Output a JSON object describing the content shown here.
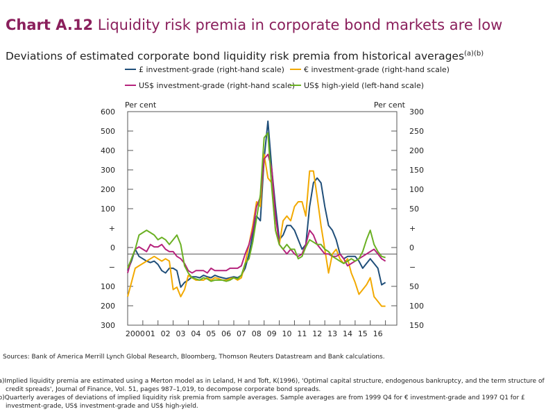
{
  "header": {
    "number": "Chart A.12",
    "title": "Liquidity risk premia in corporate bond markets are low",
    "subtitle": "Deviations of estimated corporate bond liquidity risk premia from historical averages",
    "subtitle_marks": "(a)(b)"
  },
  "footer": {
    "sources": "Sources: Bank of America Merrill Lynch Global Research, Bloomberg, Thomson Reuters Datastream and Bank calculations.",
    "note_a_line1": "(a)Implied liquidity premia are estimated using a Merton model as in Leland, H and Toft, K(1996), 'Optimal capital structure, endogenous bankruptcy, and the term structure of",
    "note_a_line2": "credit spreads', Journal of Finance, Vol. 51, pages 987–1,019, to decompose corporate bond spreads.",
    "note_b_line1": "(b)Quarterly averages of deviations of implied liquidity risk premia from sample averages. Sample averages are from 1999 Q4 for € investment-grade and 1997 Q1 for £",
    "note_b_line2": "investment-grade, US$ investment-grade and US$ high-yield."
  },
  "chart_data": {
    "type": "line",
    "left_axis": {
      "label": "Per cent",
      "ticks": [
        "600",
        "500",
        "400",
        "300",
        "200",
        "100",
        "+",
        "0",
        "−",
        "100",
        "200",
        "300"
      ]
    },
    "right_axis": {
      "label": "Per cent",
      "ticks": [
        "300",
        "250",
        "200",
        "150",
        "100",
        "50",
        "+",
        "0",
        "−",
        "50",
        "100",
        "150"
      ]
    },
    "x_tick_labels": [
      "2000",
      "01",
      "02",
      "03",
      "04",
      "05",
      "06",
      "07",
      "08",
      "09",
      "10",
      "11",
      "12",
      "13",
      "14",
      "15",
      "16"
    ],
    "ylim_left": [
      -300,
      600
    ],
    "ylim_right": [
      -150,
      300
    ],
    "x_range": [
      2000.0,
      2017.75
    ],
    "zero_line": true,
    "legend_position": "top",
    "series": [
      {
        "name": "£ investment-grade (right-hand scale)",
        "axis": "right",
        "color": "#1f4e79",
        "points": [
          [
            2000.0,
            -35
          ],
          [
            2000.25,
            -15
          ],
          [
            2000.5,
            10
          ],
          [
            2000.75,
            -5
          ],
          [
            2001.0,
            -10
          ],
          [
            2001.25,
            -15
          ],
          [
            2001.5,
            -18
          ],
          [
            2001.75,
            -15
          ],
          [
            2002.0,
            -22
          ],
          [
            2002.25,
            -35
          ],
          [
            2002.5,
            -40
          ],
          [
            2002.75,
            -30
          ],
          [
            2003.0,
            -30
          ],
          [
            2003.25,
            -35
          ],
          [
            2003.5,
            -70
          ],
          [
            2003.75,
            -60
          ],
          [
            2004.0,
            -55
          ],
          [
            2004.25,
            -48
          ],
          [
            2004.5,
            -48
          ],
          [
            2004.75,
            -50
          ],
          [
            2005.0,
            -45
          ],
          [
            2005.25,
            -48
          ],
          [
            2005.5,
            -50
          ],
          [
            2005.75,
            -45
          ],
          [
            2006.0,
            -48
          ],
          [
            2006.25,
            -50
          ],
          [
            2006.5,
            -52
          ],
          [
            2006.75,
            -50
          ],
          [
            2007.0,
            -48
          ],
          [
            2007.25,
            -50
          ],
          [
            2007.5,
            -45
          ],
          [
            2007.75,
            -30
          ],
          [
            2008.0,
            0
          ],
          [
            2008.25,
            40
          ],
          [
            2008.5,
            80
          ],
          [
            2008.75,
            70
          ],
          [
            2009.0,
            200
          ],
          [
            2009.25,
            280
          ],
          [
            2009.5,
            180
          ],
          [
            2009.75,
            100
          ],
          [
            2010.0,
            30
          ],
          [
            2010.25,
            40
          ],
          [
            2010.5,
            60
          ],
          [
            2010.75,
            60
          ],
          [
            2011.0,
            50
          ],
          [
            2011.25,
            30
          ],
          [
            2011.5,
            10
          ],
          [
            2011.75,
            20
          ],
          [
            2012.0,
            100
          ],
          [
            2012.25,
            150
          ],
          [
            2012.5,
            160
          ],
          [
            2012.75,
            150
          ],
          [
            2013.0,
            100
          ],
          [
            2013.25,
            60
          ],
          [
            2013.5,
            50
          ],
          [
            2013.75,
            30
          ],
          [
            2014.0,
            0
          ],
          [
            2014.25,
            -10
          ],
          [
            2014.5,
            -5
          ],
          [
            2014.75,
            -5
          ],
          [
            2015.0,
            -5
          ],
          [
            2015.25,
            -15
          ],
          [
            2015.5,
            -30
          ],
          [
            2015.75,
            -20
          ],
          [
            2016.0,
            -10
          ],
          [
            2016.25,
            -20
          ],
          [
            2016.5,
            -30
          ],
          [
            2016.75,
            -65
          ],
          [
            2017.0,
            -60
          ]
        ]
      },
      {
        "name": "€ investment-grade (right-hand scale)",
        "axis": "right",
        "color": "#f2a900",
        "points": [
          [
            2000.0,
            -90
          ],
          [
            2000.25,
            -60
          ],
          [
            2000.5,
            -30
          ],
          [
            2000.75,
            -25
          ],
          [
            2001.0,
            -20
          ],
          [
            2001.25,
            -15
          ],
          [
            2001.5,
            -10
          ],
          [
            2001.75,
            -5
          ],
          [
            2002.0,
            -10
          ],
          [
            2002.25,
            -15
          ],
          [
            2002.5,
            -10
          ],
          [
            2002.75,
            -15
          ],
          [
            2003.0,
            -75
          ],
          [
            2003.25,
            -70
          ],
          [
            2003.5,
            -90
          ],
          [
            2003.75,
            -75
          ],
          [
            2004.0,
            -45
          ],
          [
            2004.25,
            -50
          ],
          [
            2004.5,
            -55
          ],
          [
            2004.75,
            -55
          ],
          [
            2005.0,
            -55
          ],
          [
            2005.25,
            -50
          ],
          [
            2005.5,
            -55
          ],
          [
            2005.75,
            -50
          ],
          [
            2006.0,
            -52
          ],
          [
            2006.25,
            -55
          ],
          [
            2006.5,
            -55
          ],
          [
            2006.75,
            -52
          ],
          [
            2007.0,
            -50
          ],
          [
            2007.25,
            -55
          ],
          [
            2007.5,
            -50
          ],
          [
            2007.75,
            -20
          ],
          [
            2008.0,
            20
          ],
          [
            2008.25,
            60
          ],
          [
            2008.5,
            110
          ],
          [
            2008.75,
            100
          ],
          [
            2009.0,
            210
          ],
          [
            2009.25,
            160
          ],
          [
            2009.5,
            150
          ],
          [
            2009.75,
            50
          ],
          [
            2010.0,
            20
          ],
          [
            2010.25,
            70
          ],
          [
            2010.5,
            80
          ],
          [
            2010.75,
            70
          ],
          [
            2011.0,
            100
          ],
          [
            2011.25,
            110
          ],
          [
            2011.5,
            110
          ],
          [
            2011.75,
            80
          ],
          [
            2012.0,
            175
          ],
          [
            2012.25,
            175
          ],
          [
            2012.5,
            120
          ],
          [
            2012.75,
            60
          ],
          [
            2013.0,
            10
          ],
          [
            2013.25,
            -40
          ],
          [
            2013.5,
            0
          ],
          [
            2013.75,
            10
          ],
          [
            2014.0,
            -10
          ],
          [
            2014.25,
            -20
          ],
          [
            2014.5,
            -10
          ],
          [
            2014.75,
            -40
          ],
          [
            2015.0,
            -60
          ],
          [
            2015.25,
            -85
          ],
          [
            2015.5,
            -75
          ],
          [
            2015.75,
            -65
          ],
          [
            2016.0,
            -50
          ],
          [
            2016.25,
            -90
          ],
          [
            2016.5,
            -100
          ],
          [
            2016.75,
            -110
          ],
          [
            2017.0,
            -110
          ]
        ]
      },
      {
        "name": "US$ investment-grade (right-hand scale)",
        "axis": "right",
        "color": "#b5227c",
        "points": [
          [
            2000.0,
            -40
          ],
          [
            2000.25,
            -10
          ],
          [
            2000.5,
            10
          ],
          [
            2000.75,
            15
          ],
          [
            2001.0,
            10
          ],
          [
            2001.25,
            5
          ],
          [
            2001.5,
            20
          ],
          [
            2001.75,
            15
          ],
          [
            2002.0,
            15
          ],
          [
            2002.25,
            20
          ],
          [
            2002.5,
            10
          ],
          [
            2002.75,
            5
          ],
          [
            2003.0,
            5
          ],
          [
            2003.25,
            -5
          ],
          [
            2003.5,
            -10
          ],
          [
            2003.75,
            -20
          ],
          [
            2004.0,
            -35
          ],
          [
            2004.25,
            -40
          ],
          [
            2004.5,
            -35
          ],
          [
            2004.75,
            -35
          ],
          [
            2005.0,
            -35
          ],
          [
            2005.25,
            -40
          ],
          [
            2005.5,
            -30
          ],
          [
            2005.75,
            -35
          ],
          [
            2006.0,
            -35
          ],
          [
            2006.25,
            -35
          ],
          [
            2006.5,
            -35
          ],
          [
            2006.75,
            -30
          ],
          [
            2007.0,
            -30
          ],
          [
            2007.25,
            -30
          ],
          [
            2007.5,
            -25
          ],
          [
            2007.75,
            0
          ],
          [
            2008.0,
            20
          ],
          [
            2008.25,
            50
          ],
          [
            2008.5,
            100
          ],
          [
            2008.75,
            120
          ],
          [
            2009.0,
            200
          ],
          [
            2009.25,
            210
          ],
          [
            2009.5,
            180
          ],
          [
            2009.75,
            80
          ],
          [
            2010.0,
            20
          ],
          [
            2010.25,
            10
          ],
          [
            2010.5,
            0
          ],
          [
            2010.75,
            10
          ],
          [
            2011.0,
            0
          ],
          [
            2011.25,
            -5
          ],
          [
            2011.5,
            0
          ],
          [
            2011.75,
            20
          ],
          [
            2012.0,
            50
          ],
          [
            2012.25,
            40
          ],
          [
            2012.5,
            20
          ],
          [
            2012.75,
            10
          ],
          [
            2013.0,
            0
          ],
          [
            2013.25,
            0
          ],
          [
            2013.5,
            -5
          ],
          [
            2013.75,
            -5
          ],
          [
            2014.0,
            0
          ],
          [
            2014.25,
            -10
          ],
          [
            2014.5,
            -25
          ],
          [
            2014.75,
            -20
          ],
          [
            2015.0,
            -15
          ],
          [
            2015.25,
            -10
          ],
          [
            2015.5,
            -5
          ],
          [
            2015.75,
            0
          ],
          [
            2016.0,
            5
          ],
          [
            2016.25,
            10
          ],
          [
            2016.5,
            0
          ],
          [
            2016.75,
            -10
          ],
          [
            2017.0,
            -15
          ]
        ]
      },
      {
        "name": "US$ high-yield (left-hand scale)",
        "axis": "left",
        "color": "#6ab023",
        "points": [
          [
            2000.0,
            -60
          ],
          [
            2000.25,
            -20
          ],
          [
            2000.5,
            20
          ],
          [
            2000.75,
            80
          ],
          [
            2001.0,
            90
          ],
          [
            2001.25,
            100
          ],
          [
            2001.5,
            90
          ],
          [
            2001.75,
            80
          ],
          [
            2002.0,
            60
          ],
          [
            2002.25,
            70
          ],
          [
            2002.5,
            60
          ],
          [
            2002.75,
            40
          ],
          [
            2003.0,
            60
          ],
          [
            2003.25,
            80
          ],
          [
            2003.5,
            40
          ],
          [
            2003.75,
            -50
          ],
          [
            2004.0,
            -80
          ],
          [
            2004.25,
            -100
          ],
          [
            2004.5,
            -105
          ],
          [
            2004.75,
            -110
          ],
          [
            2005.0,
            -100
          ],
          [
            2005.25,
            -105
          ],
          [
            2005.5,
            -115
          ],
          [
            2005.75,
            -110
          ],
          [
            2006.0,
            -110
          ],
          [
            2006.25,
            -110
          ],
          [
            2006.5,
            -115
          ],
          [
            2006.75,
            -110
          ],
          [
            2007.0,
            -100
          ],
          [
            2007.25,
            -105
          ],
          [
            2007.5,
            -90
          ],
          [
            2007.75,
            -40
          ],
          [
            2008.0,
            -20
          ],
          [
            2008.25,
            50
          ],
          [
            2008.5,
            150
          ],
          [
            2008.75,
            250
          ],
          [
            2009.0,
            490
          ],
          [
            2009.25,
            510
          ],
          [
            2009.5,
            280
          ],
          [
            2009.75,
            100
          ],
          [
            2010.0,
            40
          ],
          [
            2010.25,
            20
          ],
          [
            2010.5,
            40
          ],
          [
            2010.75,
            20
          ],
          [
            2011.0,
            20
          ],
          [
            2011.25,
            -20
          ],
          [
            2011.5,
            -10
          ],
          [
            2011.75,
            30
          ],
          [
            2012.0,
            60
          ],
          [
            2012.25,
            50
          ],
          [
            2012.5,
            40
          ],
          [
            2012.75,
            40
          ],
          [
            2013.0,
            20
          ],
          [
            2013.25,
            10
          ],
          [
            2013.5,
            -10
          ],
          [
            2013.75,
            -20
          ],
          [
            2014.0,
            -30
          ],
          [
            2014.25,
            -40
          ],
          [
            2014.5,
            -30
          ],
          [
            2014.75,
            -20
          ],
          [
            2015.0,
            -30
          ],
          [
            2015.25,
            -20
          ],
          [
            2015.5,
            10
          ],
          [
            2015.75,
            60
          ],
          [
            2016.0,
            100
          ],
          [
            2016.25,
            40
          ],
          [
            2016.5,
            10
          ],
          [
            2016.75,
            -10
          ],
          [
            2017.0,
            -15
          ]
        ]
      }
    ]
  }
}
